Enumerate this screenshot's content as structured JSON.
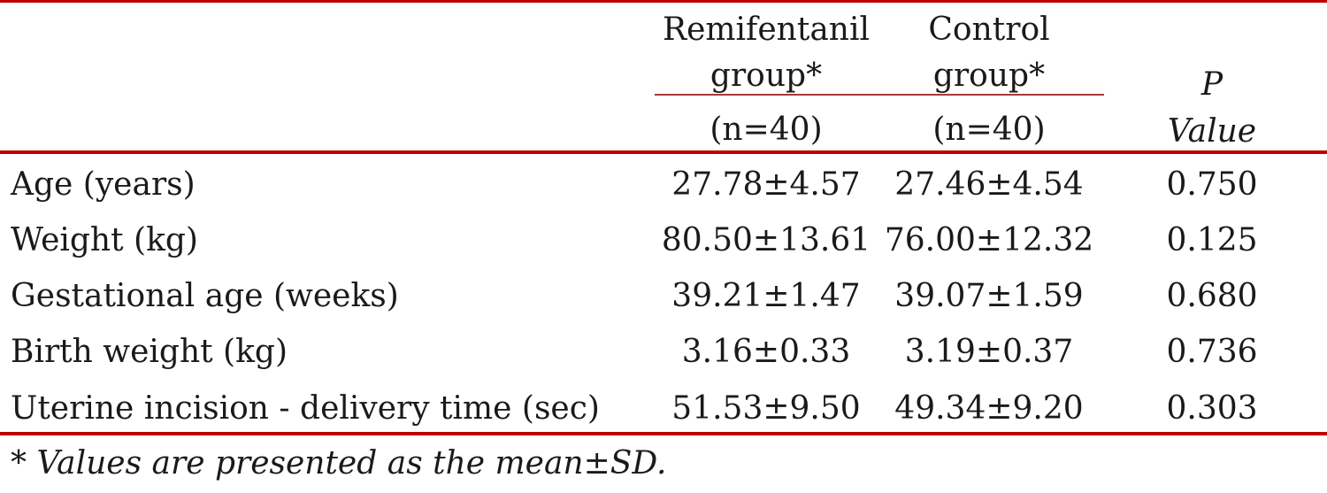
{
  "table": {
    "header": {
      "col1": {
        "line1": "Remifentanil",
        "line2": "group*",
        "line3": "(n=40)"
      },
      "col2": {
        "line1": "Control",
        "line2": "group*",
        "line3": "(n=40)"
      },
      "col3": {
        "line1": "P",
        "line2": "Value"
      }
    },
    "rows": [
      {
        "label": "Age (years)",
        "remifentanil": "27.78±4.57",
        "control": "27.46±4.54",
        "p": "0.750"
      },
      {
        "label": "Weight (kg)",
        "remifentanil": "80.50±13.61",
        "control": "76.00±12.32",
        "p": "0.125"
      },
      {
        "label": "Gestational age (weeks)",
        "remifentanil": "39.21±1.47",
        "control": "39.07±1.59",
        "p": "0.680"
      },
      {
        "label": "Birth weight (kg)",
        "remifentanil": "3.16±0.33",
        "control": "3.19±0.37",
        "p": "0.736"
      },
      {
        "label": "Uterine incision - delivery time (sec)",
        "remifentanil": "51.53±9.50",
        "control": "49.34±9.20",
        "p": "0.303"
      }
    ],
    "footnote": "* Values are presented as the mean±SD."
  },
  "colors": {
    "rule": "#c00000",
    "text": "#1a1a1a"
  }
}
